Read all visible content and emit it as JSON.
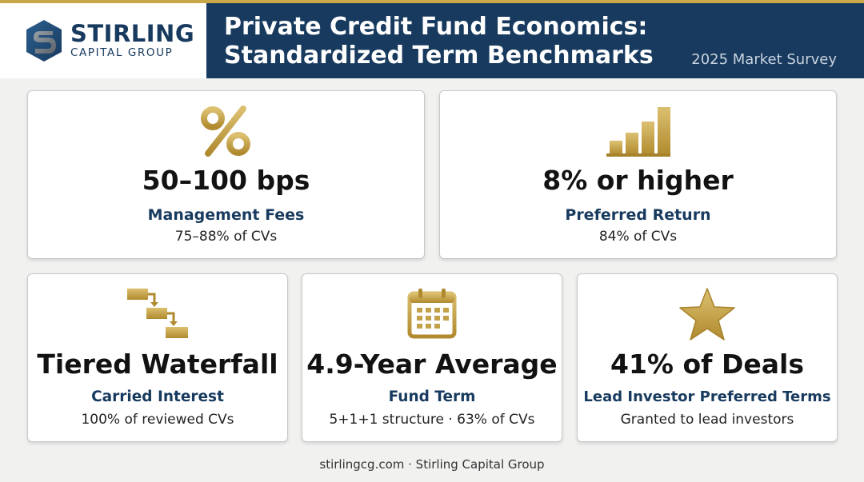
{
  "brand": {
    "name": "STIRLING",
    "subtitle": "CAPITAL GROUP",
    "logo_icon": "s-monogram-icon"
  },
  "header": {
    "title_line1": "Private Credit Fund Economics:",
    "title_line2": "Standardized Term Benchmarks",
    "subtitle": "2025 Market Survey"
  },
  "colors": {
    "navy": "#173a5e",
    "gold": "#c9a84a",
    "background": "#f1f1f0"
  },
  "cards": [
    {
      "icon": "percent-icon",
      "value": "50–100 bps",
      "label": "Management Fees",
      "note": "75–88% of CVs"
    },
    {
      "icon": "bar-chart-icon",
      "value": "8% or higher",
      "label": "Preferred Return",
      "note": "84% of CVs"
    },
    {
      "icon": "waterfall-steps-icon",
      "value": "Tiered Waterfall",
      "label": "Carried Interest",
      "note": "100% of reviewed CVs"
    },
    {
      "icon": "calendar-icon",
      "value": "4.9-Year Average",
      "label": "Fund Term",
      "note": "5+1+1 structure · 63% of CVs"
    },
    {
      "icon": "star-icon",
      "value": "41% of Deals",
      "label": "Lead Investor Preferred Terms",
      "note": "Granted to lead investors"
    }
  ],
  "footer": {
    "text": "stirlingcg.com · Stirling Capital Group"
  }
}
